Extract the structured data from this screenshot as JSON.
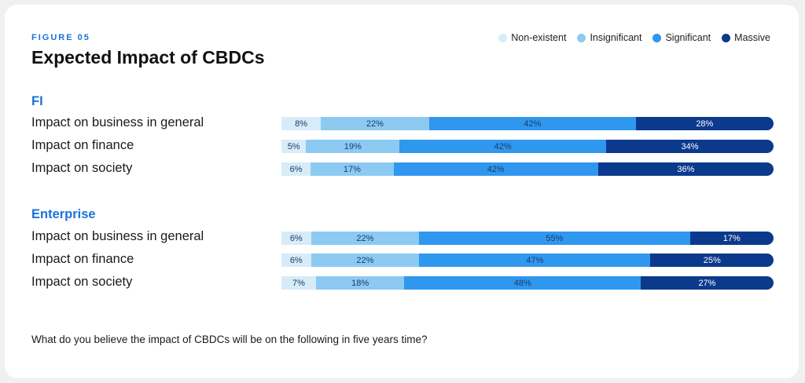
{
  "figure_label": "FIGURE 05",
  "title": "Expected Impact of CBDCs",
  "legend": [
    {
      "label": "Non-existent",
      "color": "#d6ecf8"
    },
    {
      "label": "Insignificant",
      "color": "#8ccaf2"
    },
    {
      "label": "Significant",
      "color": "#2f97ee"
    },
    {
      "label": "Massive",
      "color": "#0b3a8c"
    }
  ],
  "footnote": "What do you believe the impact of CBDCs will be on the following in five years time?",
  "chart_data": {
    "type": "bar",
    "stacked": true,
    "orientation": "horizontal",
    "unit": "%",
    "groups": [
      {
        "name": "FI",
        "rows": [
          {
            "label": "Impact on business in general",
            "values": [
              8,
              22,
              42,
              28
            ]
          },
          {
            "label": "Impact on finance",
            "values": [
              5,
              19,
              42,
              34
            ]
          },
          {
            "label": "Impact on society",
            "values": [
              6,
              17,
              42,
              36
            ]
          }
        ]
      },
      {
        "name": "Enterprise",
        "rows": [
          {
            "label": "Impact on business in general",
            "values": [
              6,
              22,
              55,
              17
            ]
          },
          {
            "label": "Impact on finance",
            "values": [
              6,
              22,
              47,
              25
            ]
          },
          {
            "label": "Impact on society",
            "values": [
              7,
              18,
              48,
              27
            ]
          }
        ]
      }
    ],
    "series": [
      "Non-existent",
      "Insignificant",
      "Significant",
      "Massive"
    ]
  }
}
